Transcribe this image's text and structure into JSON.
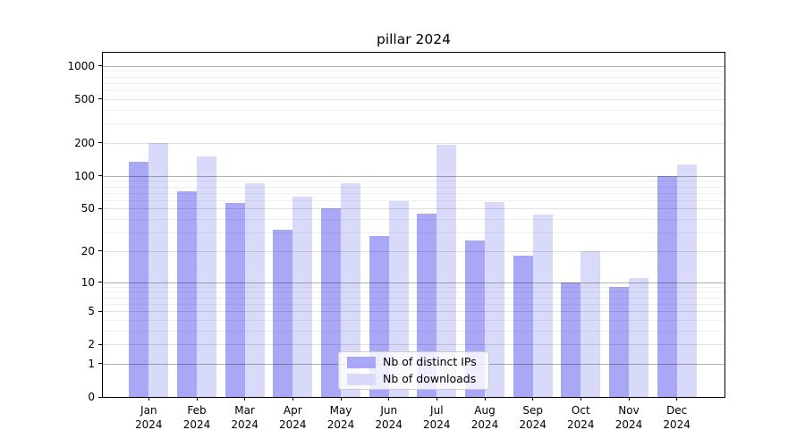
{
  "chart_data": {
    "type": "bar",
    "title": "pillar 2024",
    "categories": [
      "Jan",
      "Feb",
      "Mar",
      "Apr",
      "May",
      "Jun",
      "Jul",
      "Aug",
      "Sep",
      "Oct",
      "Nov",
      "Dec"
    ],
    "year_label": "2024",
    "series": [
      {
        "name": "Nb of distinct IPs",
        "color": "#a8a8f7",
        "values": [
          135,
          72,
          56,
          32,
          50,
          28,
          45,
          25,
          18,
          10,
          9,
          100
        ]
      },
      {
        "name": "Nb of downloads",
        "color": "#d9d9fa",
        "values": [
          200,
          150,
          85,
          65,
          86,
          59,
          193,
          58,
          44,
          20,
          11,
          127
        ]
      }
    ],
    "yticks": [
      0,
      1,
      2,
      5,
      10,
      20,
      50,
      100,
      200,
      500,
      1000
    ],
    "yscale": "log10(value+1)",
    "ylim": [
      0,
      1300
    ],
    "grid": true,
    "legend_position": "lower center",
    "axis_color": "#000000",
    "gridline_major_color": "#b3b3b3",
    "gridline_minor_color": "#efefef"
  }
}
